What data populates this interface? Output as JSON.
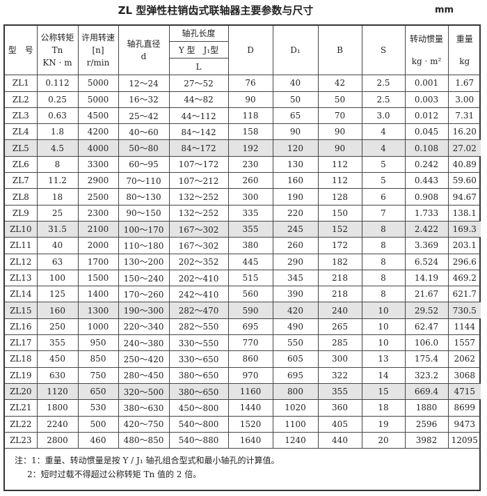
{
  "title": "ZL 型弹性柱销齿式联轴器主要参数与尺寸",
  "unit": "mm",
  "headers": {
    "model": "型　号",
    "torque": [
      "公称转矩",
      "Tn",
      "KN · m"
    ],
    "speed": [
      "许用转速",
      "[n]",
      "r/min"
    ],
    "bore": [
      "轴孔直径",
      "d"
    ],
    "length": "轴孔长度",
    "length_types": "Y 型　J₁型",
    "length_symbol": "L",
    "D": "D",
    "D1": "D₁",
    "B": "B",
    "S": "S",
    "inertia": [
      "转动惯量",
      "kg · m²"
    ],
    "weight": [
      "重量",
      "kg"
    ]
  },
  "rows": [
    [
      "ZL1",
      "0.112",
      "5000",
      "12～24",
      "27～52",
      "76",
      "40",
      "42",
      "2.5",
      "0.001",
      "1.67"
    ],
    [
      "ZL2",
      "0.25",
      "5000",
      "16～32",
      "44～82",
      "90",
      "50",
      "50",
      "2.5",
      "0.003",
      "3.00"
    ],
    [
      "ZL3",
      "0.63",
      "4500",
      "25～42",
      "44～112",
      "118",
      "65",
      "70",
      "3.0",
      "0.012",
      "7.31"
    ],
    [
      "ZL4",
      "1.8",
      "4200",
      "40～60",
      "84～142",
      "158",
      "90",
      "90",
      "4",
      "0.045",
      "16.20"
    ],
    [
      "ZL5",
      "4.5",
      "4000",
      "50～80",
      "84～172",
      "192",
      "120",
      "90",
      "4",
      "0.108",
      "27.02"
    ],
    [
      "ZL6",
      "8",
      "3300",
      "60～95",
      "107～172",
      "230",
      "130",
      "112",
      "5",
      "0.242",
      "40.89"
    ],
    [
      "ZL7",
      "11.2",
      "2900",
      "70～110",
      "107～212",
      "260",
      "160",
      "112",
      "5",
      "0.443",
      "59.60"
    ],
    [
      "ZL8",
      "18",
      "2500",
      "80～130",
      "132～252",
      "300",
      "190",
      "128",
      "6",
      "0.908",
      "94.67"
    ],
    [
      "ZL9",
      "25",
      "2300",
      "90～150",
      "132～252",
      "335",
      "220",
      "150",
      "7",
      "1.733",
      "138.1"
    ],
    [
      "ZL10",
      "31.5",
      "2100",
      "100～170",
      "167～302",
      "355",
      "245",
      "152",
      "8",
      "2.422",
      "169.3"
    ],
    [
      "ZL11",
      "40",
      "2000",
      "110～180",
      "167～302",
      "380",
      "260",
      "172",
      "8",
      "3.369",
      "203.1"
    ],
    [
      "ZL12",
      "63",
      "1700",
      "130～200",
      "202～352",
      "445",
      "290",
      "182",
      "8",
      "6.524",
      "296.6"
    ],
    [
      "ZL13",
      "100",
      "1500",
      "150～240",
      "202～410",
      "515",
      "345",
      "218",
      "8",
      "14.19",
      "469.2"
    ],
    [
      "ZL14",
      "125",
      "1400",
      "170～260",
      "242～410",
      "560",
      "390",
      "218",
      "8",
      "21.67",
      "621.7"
    ],
    [
      "ZL15",
      "160",
      "1300",
      "190～300",
      "282～470",
      "590",
      "420",
      "240",
      "10",
      "29.52",
      "730.5"
    ],
    [
      "ZL16",
      "250",
      "1000",
      "220～340",
      "282～550",
      "695",
      "490",
      "265",
      "10",
      "62.47",
      "1144"
    ],
    [
      "ZL17",
      "355",
      "950",
      "240～380",
      "330～550",
      "770",
      "550",
      "285",
      "10",
      "106.0",
      "1557"
    ],
    [
      "ZL18",
      "450",
      "850",
      "250～420",
      "330～650",
      "860",
      "605",
      "300",
      "13",
      "175.4",
      "2062"
    ],
    [
      "ZL19",
      "630",
      "750",
      "280～450",
      "380～650",
      "970",
      "695",
      "322",
      "14",
      "323.2",
      "3068"
    ],
    [
      "ZL20",
      "1120",
      "650",
      "320～500",
      "380～650",
      "1160",
      "800",
      "355",
      "15",
      "669.4",
      "4715"
    ],
    [
      "ZL21",
      "1800",
      "530",
      "380～630",
      "450～800",
      "1440",
      "1020",
      "360",
      "18",
      "1880",
      "8699"
    ],
    [
      "ZL22",
      "2240",
      "500",
      "420～750",
      "540～800",
      "1520",
      "1100",
      "405",
      "19",
      "2596",
      "9473"
    ],
    [
      "ZL23",
      "2800",
      "460",
      "480～850",
      "540～880",
      "1640",
      "1240",
      "440",
      "20",
      "3982",
      "12095"
    ]
  ],
  "highlighted_rows": [
    "ZL5",
    "ZL10",
    "ZL15",
    "ZL20"
  ],
  "notes": [
    "注：1：重量、转动惯量是按 Y / J₁ 轴孔组合型式和最小轴孔的计算值。",
    "2：短时过载不得超过公称转矩 Tn 值的 2 倍。"
  ]
}
